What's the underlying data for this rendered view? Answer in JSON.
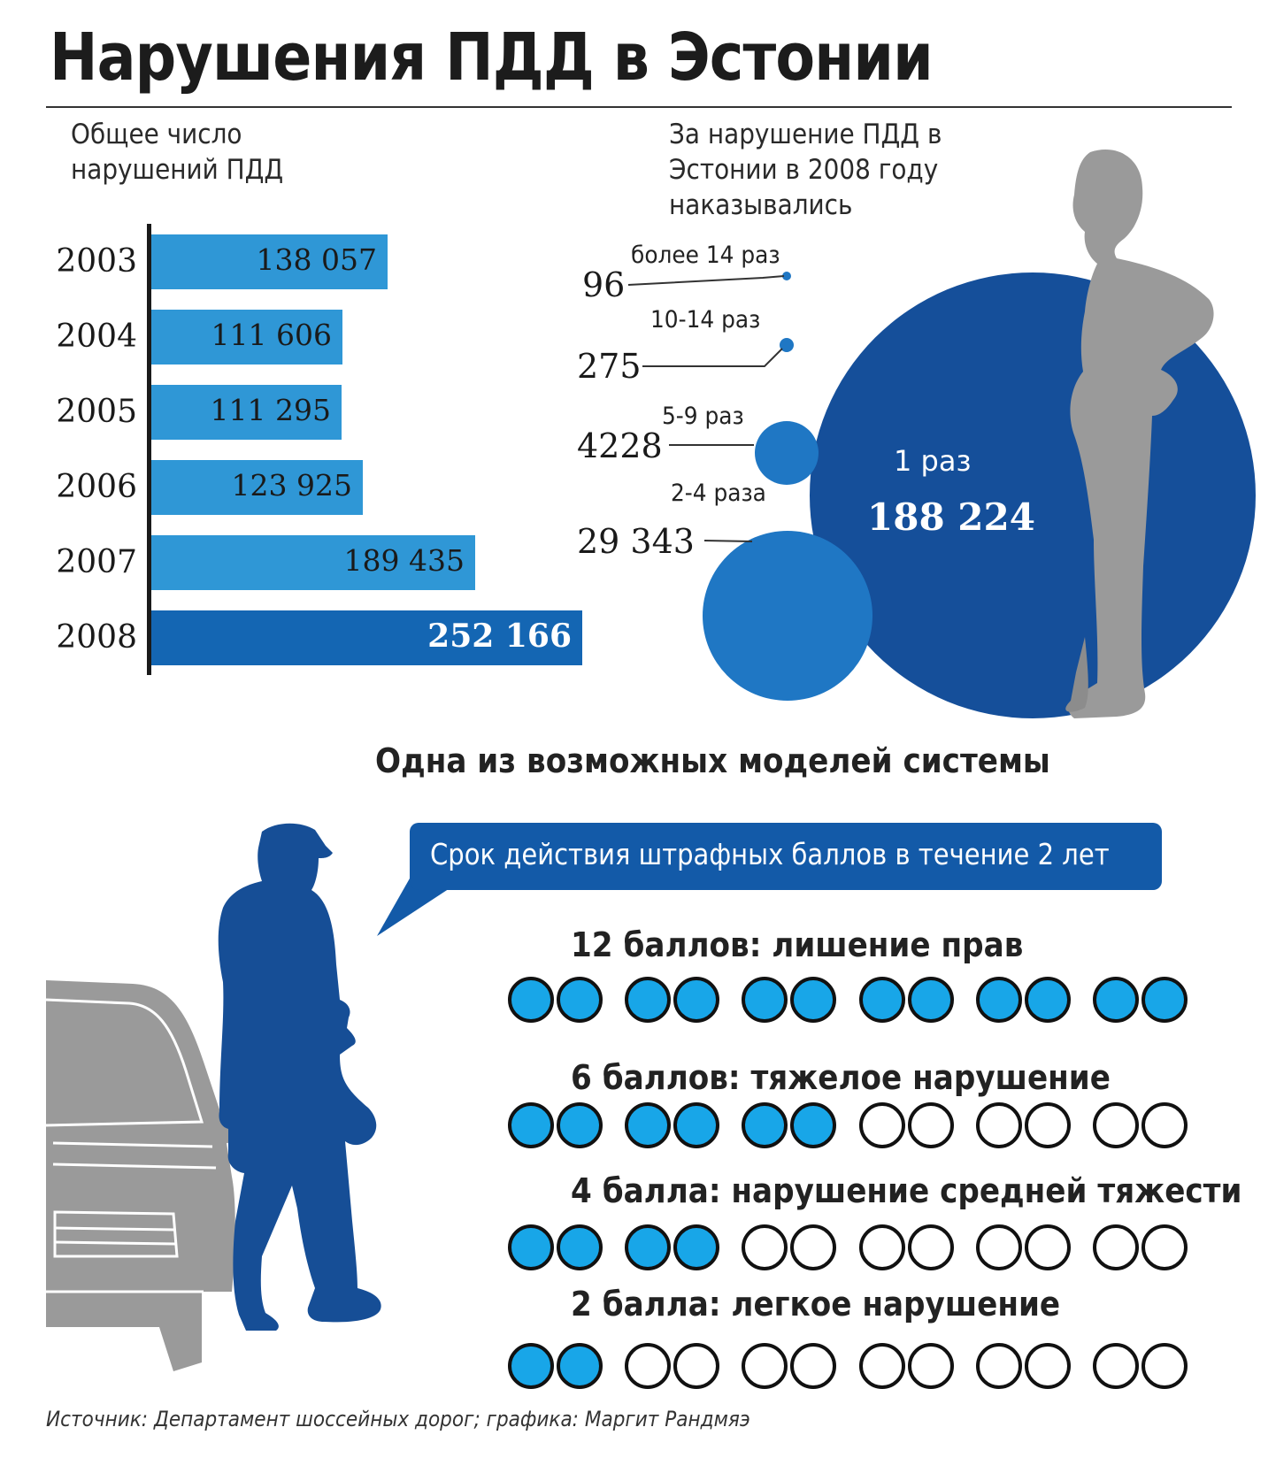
{
  "title": "Нарушения ПДД в Эстонии",
  "colors": {
    "bar": "#2f97d6",
    "bar_highlight": "#1466b3",
    "bubble_dark": "#154f9a",
    "bubble_light": "#1f77c4",
    "point_filled": "#18a6e8",
    "header_box": "#135aa8",
    "silhouette_gray": "#9a9a9a",
    "silhouette_blue": "#164e96"
  },
  "chart_data": [
    {
      "type": "bar",
      "orientation": "horizontal",
      "title": "Общее число нарушений ПДД",
      "categories": [
        "2003",
        "2004",
        "2005",
        "2006",
        "2007",
        "2008"
      ],
      "values": [
        138057,
        111606,
        111295,
        123925,
        189435,
        252166
      ],
      "value_labels": [
        "138 057",
        "111 606",
        "111 295",
        "123 925",
        "189 435",
        "252 166"
      ]
    },
    {
      "type": "bubble",
      "title": "За нарушение ПДД в Эстонии в 2008 году наказывались",
      "items": [
        {
          "label": "более 14 раз",
          "value": 96,
          "value_label": "96"
        },
        {
          "label": "10-14 раз",
          "value": 275,
          "value_label": "275"
        },
        {
          "label": "5-9 раз",
          "value": 4228,
          "value_label": "4228"
        },
        {
          "label": "2-4 раза",
          "value": 29343,
          "value_label": "29 343"
        },
        {
          "label": "1 раз",
          "value": 188224,
          "value_label": "188 224"
        }
      ]
    },
    {
      "type": "table",
      "title": "Одна из возможных моделей системы",
      "note": "Срок действия штрафных баллов в течение 2 лет",
      "max_points": 12,
      "rows": [
        {
          "label": "12 баллов: лишение прав",
          "points": 12
        },
        {
          "label": "6 баллов: тяжелое нарушение",
          "points": 6
        },
        {
          "label": "4 балла: нарушение средней тяжести",
          "points": 4
        },
        {
          "label": "2 балла: легкое нарушение",
          "points": 2
        }
      ]
    }
  ],
  "source": "Источник: Департамент шоссейных дорог; графика: Маргит Рандмяэ",
  "icons": [
    "standing-man-silhouette",
    "walking-man-silhouette",
    "car-silhouette"
  ]
}
